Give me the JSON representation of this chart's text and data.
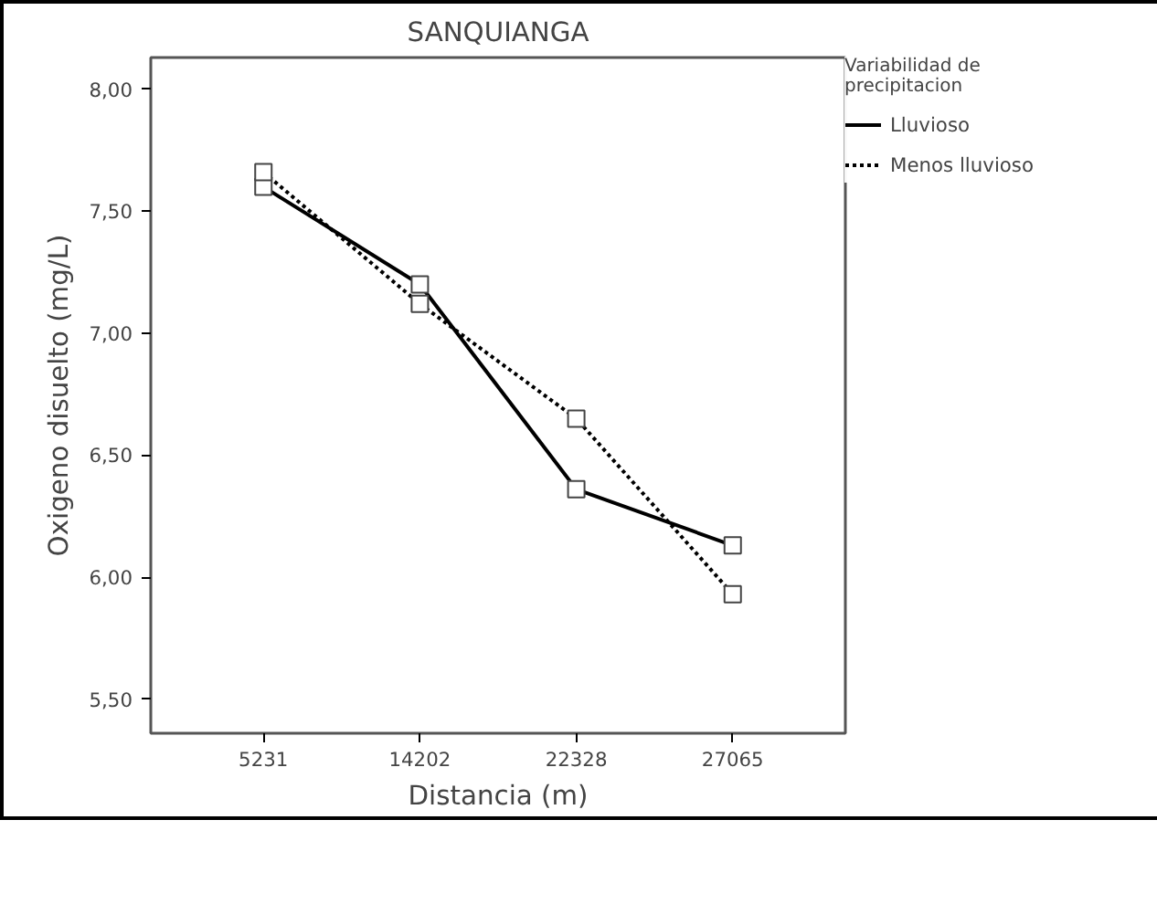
{
  "chart_data": {
    "type": "line",
    "title": "SANQUIANGA",
    "xlabel": "Distancia (m)",
    "ylabel": "Oxigeno disuelto (mg/L)",
    "legend_title": "Variabilidad de\nprecipitacion",
    "categories": [
      "5231",
      "14202",
      "22328",
      "27065"
    ],
    "series": [
      {
        "name": "Lluvioso",
        "color": "#000000",
        "line_style": "solid",
        "values": [
          7.6,
          7.2,
          6.36,
          6.13
        ]
      },
      {
        "name": "Menos lluvioso",
        "color": "#000000",
        "line_style": "dotted",
        "values": [
          7.66,
          7.12,
          6.65,
          5.93
        ]
      }
    ],
    "ylim": [
      5.36,
      8.13
    ],
    "yticks": [
      {
        "value": 5.5,
        "label": "5,50"
      },
      {
        "value": 6,
        "label": "6,00"
      },
      {
        "value": 6.5,
        "label": "6,50"
      },
      {
        "value": 7,
        "label": "7,00"
      },
      {
        "value": 7.5,
        "label": "7,50"
      },
      {
        "value": 8,
        "label": "8,00"
      }
    ],
    "marker": "square",
    "grid": false,
    "legend": "right"
  }
}
